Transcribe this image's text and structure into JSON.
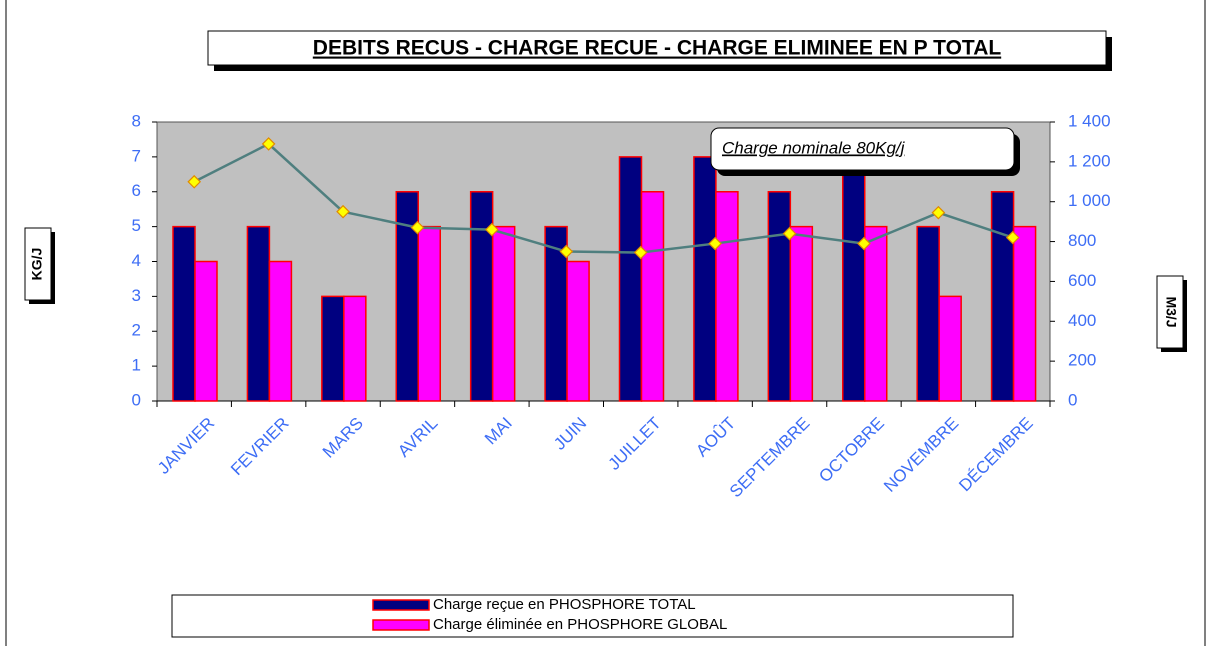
{
  "chart_data": {
    "type": "bar",
    "title": "DEBITS RECUS - CHARGE RECUE - CHARGE ELIMINEE  EN P TOTAL",
    "ylabel": "KG/J",
    "y2label": "M3/J",
    "annotation": "Charge nominale 80Kg/j",
    "categories": [
      "JANVIER",
      "FEVRIER",
      "MARS",
      "AVRIL",
      "MAI",
      "JUIN",
      "JUILLET",
      "AOÛT",
      "SEPTEMBRE",
      "OCTOBRE",
      "NOVEMBRE",
      "DÉCEMBRE"
    ],
    "series": [
      {
        "name": "Charge reçue en PHOSPHORE TOTAL",
        "color": "#000080",
        "values": [
          5,
          5,
          3,
          6,
          6,
          5,
          7,
          7,
          6,
          7,
          5,
          6
        ]
      },
      {
        "name": "Charge éliminée  en PHOSPHORE GLOBAL",
        "color": "#ff00ff",
        "values": [
          4,
          4,
          3,
          5,
          5,
          4,
          6,
          6,
          5,
          5,
          3,
          5
        ]
      },
      {
        "color": "#4f7f7f",
        "axis": "y2",
        "type": "line",
        "values": [
          1100,
          1290,
          950,
          870,
          860,
          750,
          745,
          790,
          840,
          790,
          945,
          820
        ]
      }
    ],
    "ylim": [
      0,
      8
    ],
    "yticks": [
      0,
      1,
      2,
      3,
      4,
      5,
      6,
      7,
      8
    ],
    "y2lim": [
      0,
      1400
    ],
    "y2ticks": [
      0,
      200,
      400,
      600,
      800,
      {
        "value": 1000,
        "label": "1 000"
      },
      {
        "value": 1200,
        "label": "1 200"
      },
      {
        "value": 1400,
        "label": "1 400"
      }
    ],
    "legend": "bottom"
  }
}
